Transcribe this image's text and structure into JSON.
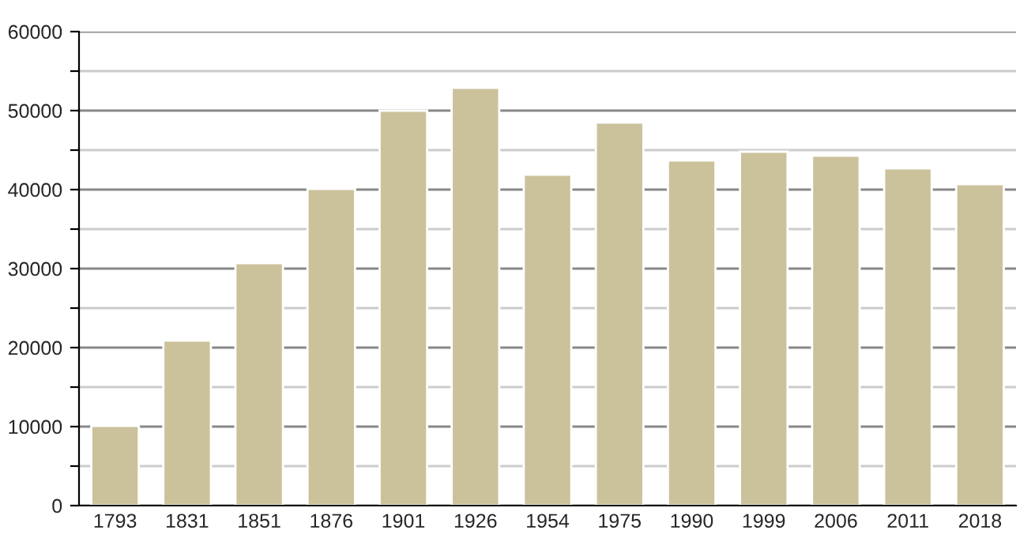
{
  "chart_data": {
    "type": "bar",
    "categories": [
      "1793",
      "1831",
      "1851",
      "1876",
      "1901",
      "1926",
      "1954",
      "1975",
      "1990",
      "1999",
      "2006",
      "2011",
      "2018"
    ],
    "values": [
      10100,
      20900,
      30700,
      40100,
      50000,
      52900,
      41900,
      48500,
      43700,
      44800,
      44300,
      42700,
      40700
    ],
    "color": "#cbc29c",
    "ylim": [
      0,
      60000
    ],
    "yticks": [
      0,
      {
        "value": 5000,
        "label": null
      },
      10000,
      {
        "value": 15000,
        "label": null
      },
      20000,
      {
        "value": 25000,
        "label": null
      },
      30000,
      {
        "value": 35000,
        "label": null
      },
      40000,
      {
        "value": 45000,
        "label": null
      },
      50000,
      {
        "value": 55000,
        "label": null
      },
      60000
    ],
    "grid": "y"
  }
}
